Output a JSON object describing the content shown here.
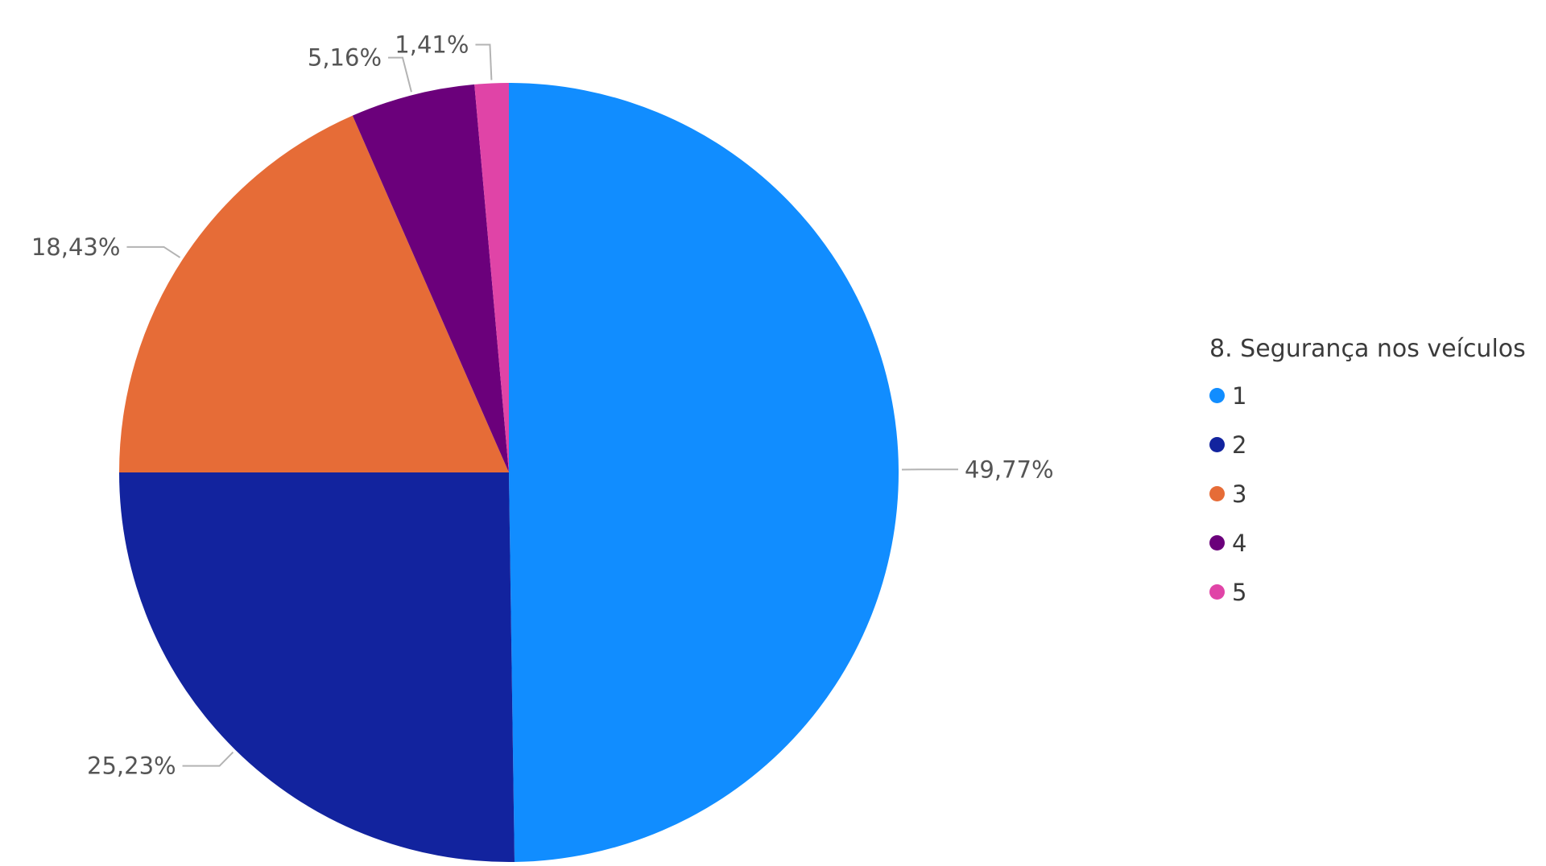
{
  "chart_data": {
    "type": "pie",
    "legend_title": "8. Segurança nos veículos",
    "legend_position": "right",
    "slices": [
      {
        "name": "1",
        "value": 49.77,
        "label": "49,77%",
        "color": "#118dff"
      },
      {
        "name": "2",
        "value": 25.23,
        "label": "25,23%",
        "color": "#12239e"
      },
      {
        "name": "3",
        "value": 18.43,
        "label": "18,43%",
        "color": "#e66c37"
      },
      {
        "name": "4",
        "value": 5.16,
        "label": "5,16%",
        "color": "#6b007b"
      },
      {
        "name": "5",
        "value": 1.41,
        "label": "1,41%",
        "color": "#e044a7"
      }
    ]
  }
}
